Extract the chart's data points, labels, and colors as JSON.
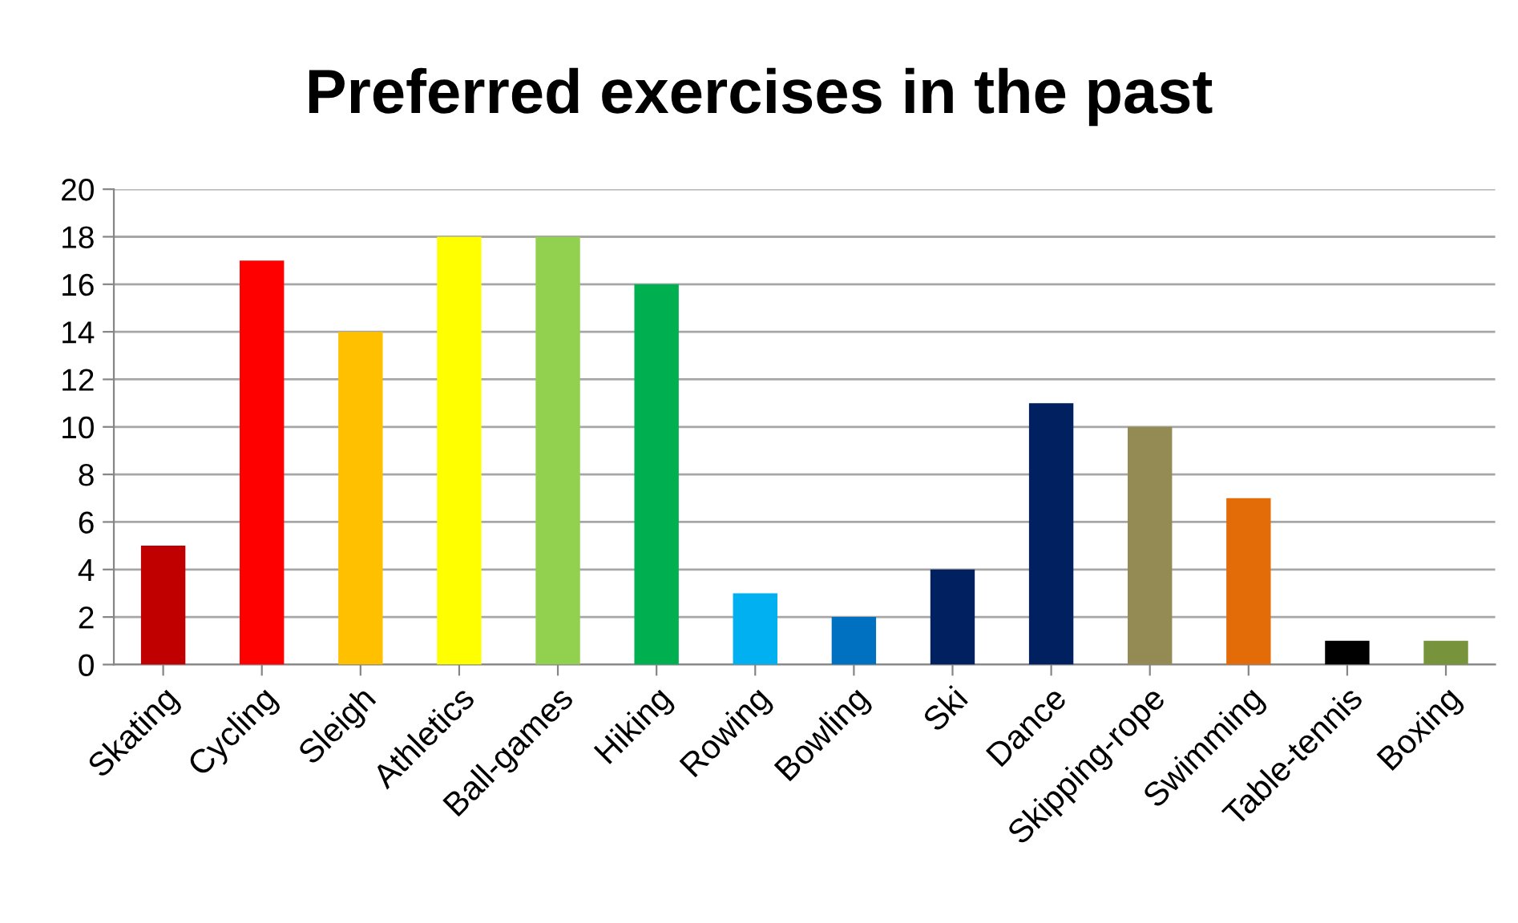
{
  "chart_data": {
    "type": "bar",
    "title": "Preferred exercises in the past",
    "categories": [
      "Skating",
      "Cycling",
      "Sleigh",
      "Athletics",
      "Ball-games",
      "Hiking",
      "Rowing",
      "Bowling",
      "Ski",
      "Dance",
      "Skipping-rope",
      "Swimming",
      "Table-tennis",
      "Boxing"
    ],
    "values": [
      5,
      17,
      14,
      18,
      18,
      16,
      3,
      2,
      4,
      11,
      10,
      7,
      1,
      1
    ],
    "colors": [
      "#c00000",
      "#ff0000",
      "#ffc000",
      "#ffff00",
      "#92d050",
      "#00b050",
      "#00b0f0",
      "#0070c0",
      "#002060",
      "#002060",
      "#948a54",
      "#e36c09",
      "#000000",
      "#77933c"
    ],
    "ylim": [
      0,
      20
    ],
    "yticks": [
      0,
      2,
      4,
      6,
      8,
      10,
      12,
      14,
      16,
      18,
      20
    ],
    "grid": "y",
    "legend": false
  }
}
